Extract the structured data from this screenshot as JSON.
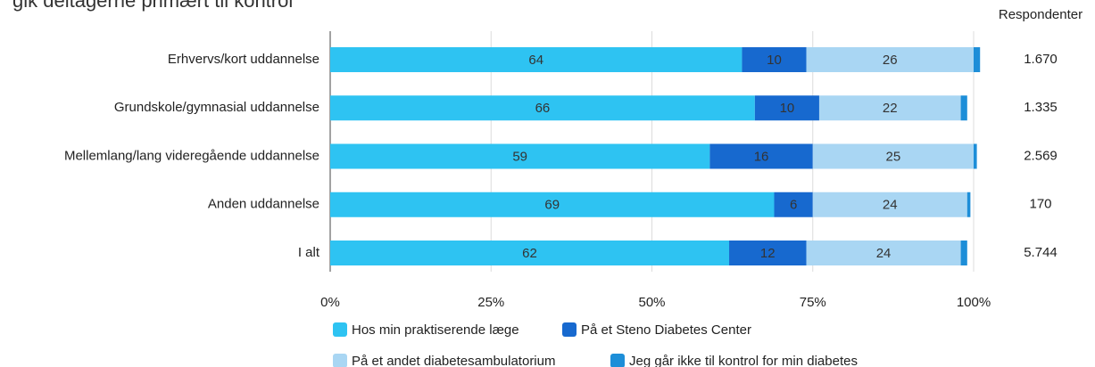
{
  "chart_data": {
    "type": "bar",
    "orientation": "horizontal",
    "stacked": true,
    "title": "gik deltagerne primært til kontrol",
    "categories": [
      "Erhvervs/kort  uddannelse",
      "Grundskole/gymnasial uddannelse",
      "Mellemlang/lang videregående uddannelse",
      "Anden uddannelse",
      "I alt"
    ],
    "series": [
      {
        "name": "Hos min praktiserende læge",
        "color": "#2ec3f2",
        "values": [
          64,
          66,
          59,
          69,
          62
        ]
      },
      {
        "name": "På et Steno Diabetes Center",
        "color": "#1769cf",
        "values": [
          10,
          10,
          16,
          6,
          12
        ]
      },
      {
        "name": "På et andet diabetesambulatorium",
        "color": "#a9d6f3",
        "values": [
          26,
          22,
          25,
          24,
          24
        ]
      },
      {
        "name": "Jeg går ikke til kontrol for min diabetes",
        "color": "#1d8ed8",
        "values": [
          1,
          1,
          0.5,
          0.5,
          1
        ]
      }
    ],
    "labeled_series": [
      0,
      1,
      2
    ],
    "xlim": [
      0,
      100
    ],
    "xticks": [
      {
        "value": 0,
        "label": "0%"
      },
      {
        "value": 25,
        "label": "25%"
      },
      {
        "value": 50,
        "label": "50%"
      },
      {
        "value": 75,
        "label": "75%"
      },
      {
        "value": 100,
        "label": "100%"
      }
    ],
    "grid": true,
    "legend": "bottom",
    "respondents_label": "Respondenter",
    "respondents": [
      "1.670",
      "1.335",
      "2.569",
      "170",
      "5.744"
    ]
  }
}
